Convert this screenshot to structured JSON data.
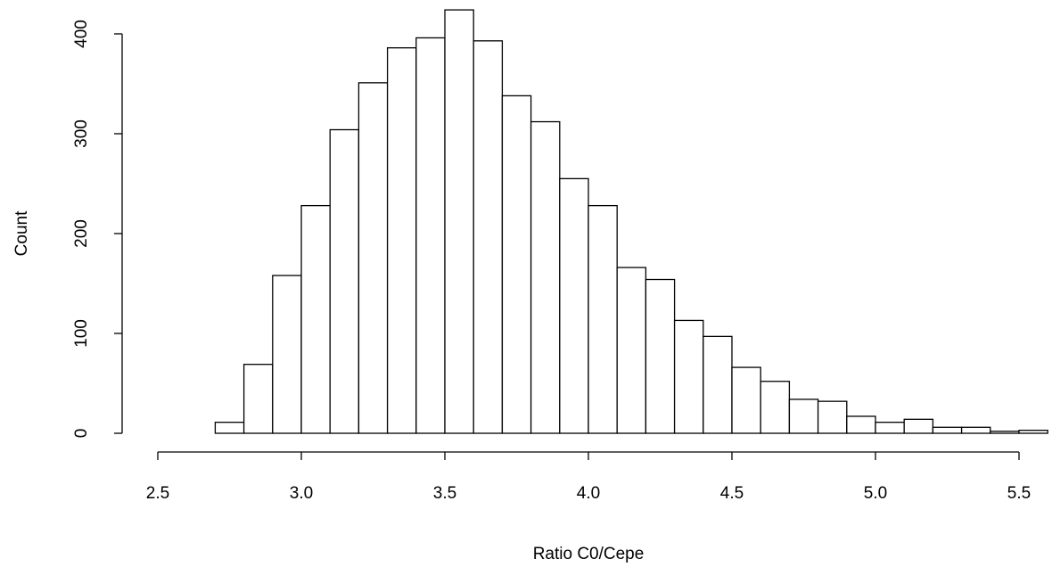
{
  "chart_data": {
    "type": "histogram",
    "xlabel": "Ratio C0/Cepe",
    "ylabel": "Count",
    "bins": [
      2.7,
      2.8,
      2.9,
      3.0,
      3.1,
      3.2,
      3.3,
      3.4,
      3.5,
      3.6,
      3.7,
      3.8,
      3.9,
      4.0,
      4.1,
      4.2,
      4.3,
      4.4,
      4.5,
      4.6,
      4.7,
      4.8,
      4.9,
      5.0,
      5.1,
      5.2,
      5.3,
      5.4,
      5.5,
      5.6
    ],
    "values": [
      11,
      69,
      158,
      228,
      304,
      351,
      386,
      396,
      424,
      393,
      338,
      312,
      255,
      228,
      166,
      154,
      113,
      97,
      66,
      52,
      34,
      32,
      17,
      11,
      14,
      6,
      6,
      2,
      3
    ],
    "color": "#ffffff",
    "xlim": [
      2.5,
      5.6
    ],
    "ylim": [
      0,
      424
    ],
    "xticks": [
      2.5,
      {
        "value": 3,
        "label": "3.0"
      },
      3.5,
      {
        "value": 4,
        "label": "4.0"
      },
      4.5,
      {
        "value": 5,
        "label": "5.0"
      },
      5.5
    ],
    "yticks": [
      0,
      100,
      200,
      300,
      400
    ]
  }
}
